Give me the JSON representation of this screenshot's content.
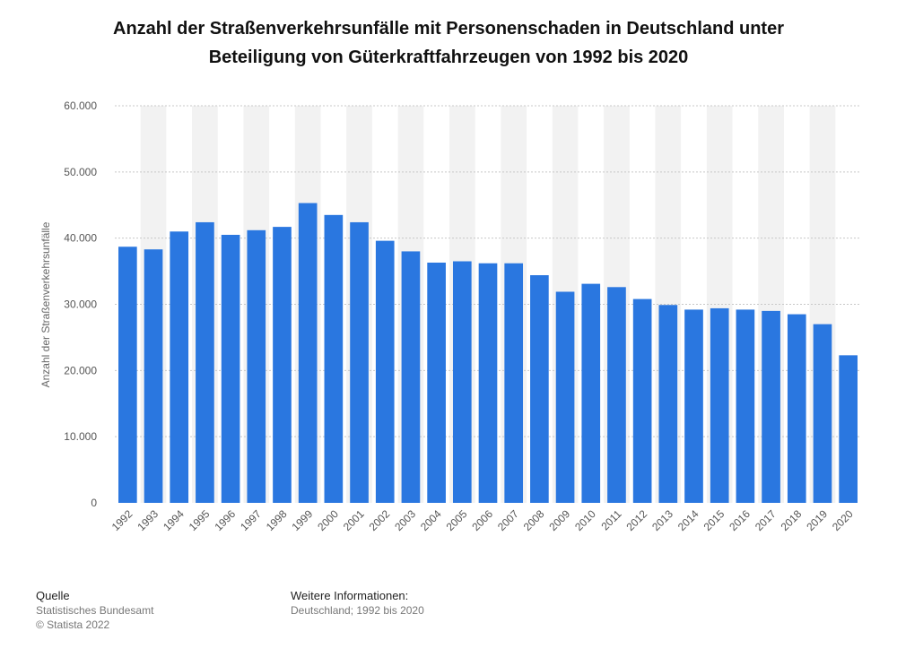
{
  "title_lines": [
    "Anzahl der Straßenverkehrsunfälle mit Personenschaden in Deutschland unter",
    "Beteiligung von Güterkraftfahrzeugen von 1992 bis 2020"
  ],
  "footer": {
    "source_heading": "Quelle",
    "source_lines": [
      "Statistisches Bundesamt",
      "© Statista 2022"
    ],
    "info_heading": "Weitere Informationen:",
    "info_lines": [
      "Deutschland; 1992 bis 2020"
    ]
  },
  "colors": {
    "bar": "#2a77e0",
    "stripe": "#f2f2f2",
    "grid": "#c8c8c8",
    "tick_text": "#555555"
  },
  "chart_data": {
    "type": "bar",
    "title": "Anzahl der Straßenverkehrsunfälle mit Personenschaden in Deutschland unter Beteiligung von Güterkraftfahrzeugen von 1992 bis 2020",
    "xlabel": "",
    "ylabel": "Anzahl der Straßenverkehrsunfälle",
    "ylim": [
      0,
      60000
    ],
    "y_ticks": [
      0,
      10000,
      20000,
      30000,
      40000,
      50000,
      60000
    ],
    "y_tick_labels": [
      "0",
      "10.000",
      "20.000",
      "30.000",
      "40.000",
      "50.000",
      "60.000"
    ],
    "grid": true,
    "categories": [
      "1992",
      "1993",
      "1994",
      "1995",
      "1996",
      "1997",
      "1998",
      "1999",
      "2000",
      "2001",
      "2002",
      "2003",
      "2004",
      "2005",
      "2006",
      "2007",
      "2008",
      "2009",
      "2010",
      "2011",
      "2012",
      "2013",
      "2014",
      "2015",
      "2016",
      "2017",
      "2018",
      "2019",
      "2020"
    ],
    "values": [
      38700,
      38300,
      41000,
      42400,
      40500,
      41200,
      41700,
      45300,
      43500,
      42400,
      39600,
      38000,
      36300,
      36500,
      36200,
      36200,
      34400,
      31900,
      33100,
      32600,
      30800,
      29900,
      29200,
      29400,
      29200,
      29000,
      28500,
      27000,
      22300
    ]
  }
}
